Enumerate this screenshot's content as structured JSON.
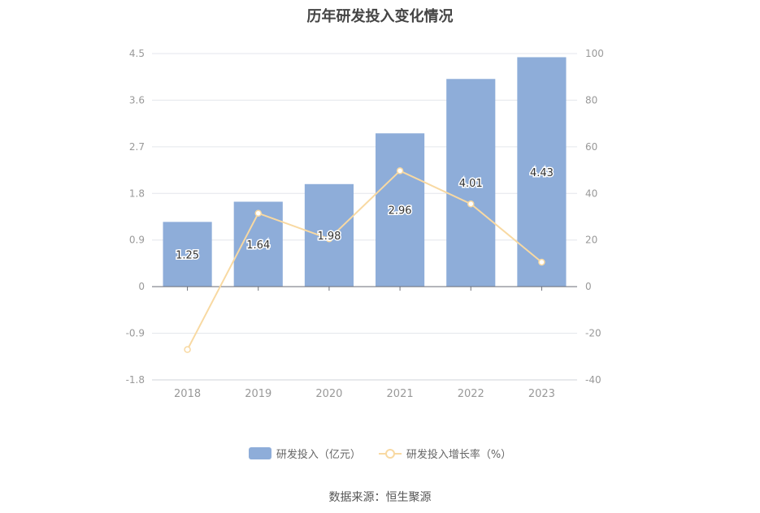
{
  "chart_data": {
    "type": "bar",
    "title": "历年研发投入变化情况",
    "categories": [
      "2018",
      "2019",
      "2020",
      "2021",
      "2022",
      "2023"
    ],
    "series": [
      {
        "name": "研发投入（亿元）",
        "type": "bar",
        "axis": "left",
        "values": [
          1.25,
          1.64,
          1.98,
          2.96,
          4.01,
          4.43
        ],
        "labels": [
          "1.25",
          "1.64",
          "1.98",
          "2.96",
          "4.01",
          "4.43"
        ],
        "color": "#8eadd9"
      },
      {
        "name": "研发投入增长率（%）",
        "type": "line",
        "axis": "right",
        "values": [
          -27.0,
          31.5,
          20.5,
          49.7,
          35.5,
          10.5
        ],
        "color": "#f8d9a2"
      }
    ],
    "left_axis": {
      "ylim": [
        -1.8,
        4.5
      ],
      "ticks": [
        "4.5",
        "3.6",
        "2.7",
        "1.8",
        "0.9",
        "0",
        "-0.9",
        "-1.8"
      ]
    },
    "right_axis": {
      "ylim": [
        -40,
        100
      ],
      "ticks": [
        "100",
        "80",
        "60",
        "40",
        "20",
        "0",
        "-20",
        "-40"
      ]
    },
    "grid": true,
    "legend_position": "bottom"
  },
  "source": "数据来源：恒生聚源"
}
